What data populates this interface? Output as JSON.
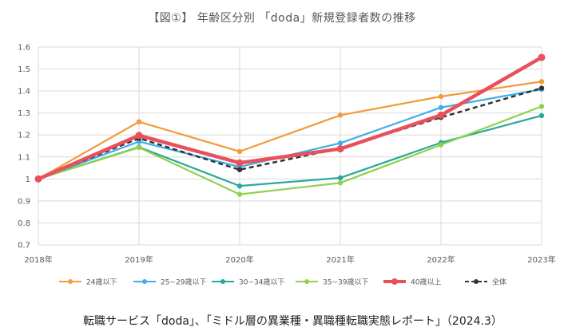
{
  "chart_data": {
    "type": "line",
    "title": "【図①】 年齢区分別 「doda」新規登録者数の推移",
    "categories": [
      "2018年",
      "2019年",
      "2020年",
      "2021年",
      "2022年",
      "2023年"
    ],
    "ylim": [
      0.7,
      1.6
    ],
    "yticks": [
      "0.7",
      "0.8",
      "0.9",
      "1",
      "1.1",
      "1.2",
      "1.3",
      "1.4",
      "1.5",
      "1.6"
    ],
    "grid": true,
    "legend_position": "bottom",
    "series": [
      {
        "name": "24歳以下",
        "color": "#f39a3a",
        "values": [
          1.0,
          1.26,
          1.125,
          1.29,
          1.375,
          1.443
        ]
      },
      {
        "name": "25~29歳以下",
        "color": "#3daee9",
        "values": [
          1.0,
          1.17,
          1.055,
          1.163,
          1.325,
          1.408
        ]
      },
      {
        "name": "30~34歳以下",
        "color": "#2aa89a",
        "values": [
          1.0,
          1.145,
          0.968,
          1.005,
          1.165,
          1.288
        ]
      },
      {
        "name": "35~39歳以下",
        "color": "#8fd14f",
        "values": [
          1.0,
          1.143,
          0.93,
          0.982,
          1.155,
          1.33
        ]
      },
      {
        "name": "40歳以上",
        "color": "#e8505b",
        "bold": true,
        "values": [
          1.0,
          1.198,
          1.073,
          1.137,
          1.29,
          1.553
        ]
      },
      {
        "name": "全体",
        "color": "#333333",
        "dashed": true,
        "values": [
          1.0,
          1.185,
          1.042,
          1.14,
          1.28,
          1.413
        ]
      }
    ]
  },
  "source_note": "転職サービス「doda」、「ミドル層の異業種・異職種転職実態レポート」（2024.3）"
}
